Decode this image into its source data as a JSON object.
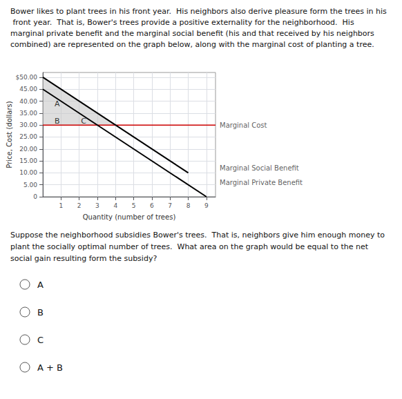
{
  "chart_data": {
    "type": "line",
    "text_above": "Bower likes to plant trees in his front year.  His neighbors also derive pleasure form the trees in his front year.  That is, Bower's trees provide a positive externality for the neighborhood.  His marginal private benefit and the marginal social benefit (his and that received by his neighbors combined) are represented on the graph below, along with the marginal cost of planting a tree.",
    "xlabel": "Quantity (number of trees)",
    "ylabel": "Price, Cost (dollars)",
    "xlim": [
      0,
      9.5
    ],
    "xticks": [
      1,
      2,
      3,
      4,
      5,
      6,
      7,
      8,
      9
    ],
    "ylim": [
      0,
      52
    ],
    "yticks": [
      0,
      {
        "value": 5,
        "label": "5.00"
      },
      {
        "value": 10,
        "label": "10.00"
      },
      {
        "value": 15,
        "label": "15.00"
      },
      {
        "value": 20,
        "label": "20.00"
      },
      {
        "value": 25,
        "label": "25.00"
      },
      {
        "value": 30,
        "label": "30.00"
      },
      {
        "value": 35,
        "label": "35.00"
      },
      {
        "value": 40,
        "label": "40.00"
      },
      {
        "value": 45,
        "label": "45.00"
      },
      {
        "value": 50,
        "label": "$50.00"
      }
    ],
    "grid": true,
    "area_color": "#c8c8c8",
    "areas": [
      {
        "points": [
          [
            0,
            45
          ],
          [
            0,
            50
          ],
          [
            3,
            35
          ],
          [
            3,
            30
          ]
        ]
      },
      {
        "points": [
          [
            0,
            30
          ],
          [
            0,
            45
          ],
          [
            3,
            30
          ]
        ]
      },
      {
        "points": [
          [
            3,
            30
          ],
          [
            3,
            35
          ],
          [
            4,
            30
          ]
        ]
      }
    ],
    "series": [
      {
        "name": "Marginal Cost",
        "type": "hline",
        "y": 30,
        "color": "#cc0000",
        "label_y": 30
      },
      {
        "name": "Marginal Social Benefit",
        "type": "line",
        "x": [
          0,
          8
        ],
        "values": [
          50,
          10
        ],
        "color": "#000000",
        "label_y": 12
      },
      {
        "name": "Marginal Private Benefit",
        "type": "line",
        "x": [
          0,
          9
        ],
        "values": [
          45,
          0
        ],
        "color": "#000000",
        "label_y": 6
      }
    ],
    "annotations": [
      {
        "text": "A",
        "x": 0.65,
        "y": 39
      },
      {
        "text": "B",
        "x": 0.65,
        "y": 31.5
      },
      {
        "text": "C",
        "x": 2.1,
        "y": 31.5
      }
    ],
    "question": "Suppose the neighborhood subsidies Bower's trees.  That is, neighbors give him enough money to plant the socially optimal number of trees.  What area on the graph would be equal to the net social gain resulting form the subsidy?",
    "choices": [
      "A",
      "B",
      "C",
      "A + B"
    ]
  }
}
